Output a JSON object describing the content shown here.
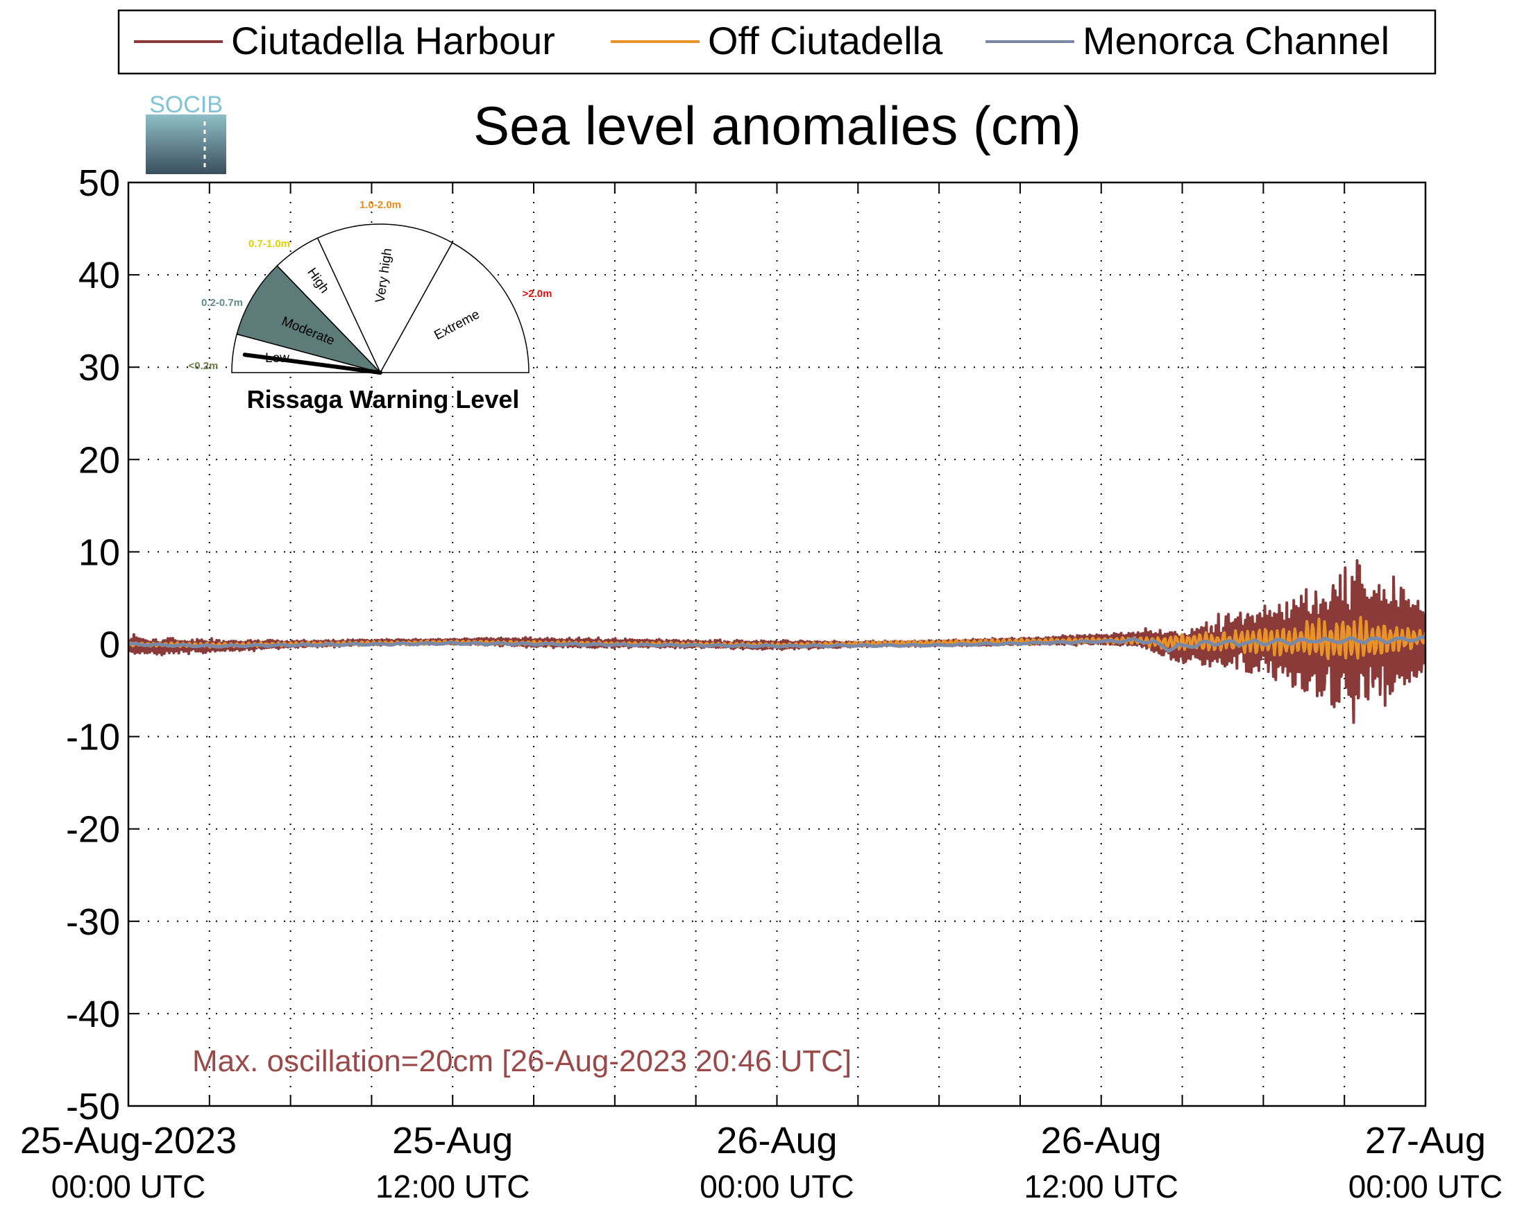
{
  "chart_data": {
    "type": "line",
    "title": "Sea level anomalies (cm)",
    "logo_text": "SOCIB",
    "xlabel": "",
    "ylabel": "",
    "ylim": [
      -50,
      50
    ],
    "yticks": [
      50,
      40,
      30,
      20,
      10,
      0,
      -10,
      -20,
      -30,
      -40,
      -50
    ],
    "ytick_labels": [
      "50",
      "40",
      "30",
      "20",
      "10",
      "0",
      "-10",
      "-20",
      "-30",
      "-40",
      "-50"
    ],
    "xlim_hours": [
      0,
      48
    ],
    "x_time_axis": "2023-08-25 00:00 UTC to 2023-08-27 00:00 UTC",
    "xtick_labels": [
      {
        "hour": 0,
        "date": "25-Aug-2023",
        "time": "00:00 UTC"
      },
      {
        "hour": 12,
        "date": "25-Aug",
        "time": "12:00 UTC"
      },
      {
        "hour": 24,
        "date": "26-Aug",
        "time": "00:00 UTC"
      },
      {
        "hour": 36,
        "date": "26-Aug",
        "time": "12:00 UTC"
      },
      {
        "hour": 48,
        "date": "27-Aug",
        "time": "00:00 UTC"
      }
    ],
    "grid": true,
    "grid_minor_x_hours": 3,
    "legend_position": "top",
    "series": [
      {
        "name": "Ciutadella Harbour",
        "color": "#8b3a3a",
        "envelope": {
          "hours": [
            0,
            1,
            2,
            3,
            6,
            9,
            12,
            15,
            18,
            21,
            24,
            27,
            30,
            33,
            36,
            37.5,
            38,
            39,
            40,
            41,
            42,
            43,
            44,
            45,
            45.5,
            46,
            46.5,
            47,
            47.6,
            48
          ],
          "mean_cm": [
            0,
            -0.3,
            -0.2,
            -0.2,
            0,
            0.2,
            0.3,
            0.2,
            0.1,
            0,
            -0.1,
            0,
            0.1,
            0.3,
            0.5,
            0.6,
            0.3,
            -0.3,
            0,
            0.5,
            0.4,
            0.3,
            0.3,
            0.4,
            0.5,
            0.4,
            0.3,
            0.5,
            0.6,
            0.6
          ],
          "amplitude_cm": [
            0.9,
            1.0,
            0.8,
            0.7,
            0.4,
            0.3,
            0.3,
            0.5,
            0.5,
            0.4,
            0.5,
            0.3,
            0.3,
            0.4,
            0.6,
            0.9,
            1.3,
            1.8,
            2.6,
            3.2,
            3.5,
            4.2,
            6.5,
            7.8,
            8.8,
            7.0,
            6.8,
            6.0,
            5.5,
            3.5
          ]
        },
        "max_cm": 9.5,
        "min_cm": -10.5
      },
      {
        "name": "Off Ciutadella",
        "color": "#e8922a",
        "envelope": {
          "hours": [
            0,
            3,
            12,
            24,
            36,
            37.5,
            38,
            40,
            42,
            43,
            44,
            46,
            48
          ],
          "mean_cm": [
            0,
            -0.1,
            0.2,
            -0.1,
            0.4,
            0.4,
            0.2,
            0.3,
            0.3,
            0.3,
            0.4,
            0.5,
            0.6
          ],
          "amplitude_cm": [
            0.2,
            0.2,
            0.2,
            0.2,
            0.3,
            0.4,
            0.6,
            1.0,
            1.3,
            1.5,
            2.2,
            2.0,
            0.8
          ]
        }
      },
      {
        "name": "Menorca Channel",
        "color": "#7a8aa6",
        "envelope": {
          "hours": [
            0,
            3,
            12,
            24,
            30,
            36,
            37.5,
            38,
            38.5,
            40,
            42,
            44,
            46,
            48
          ],
          "mean_cm": [
            0,
            -0.2,
            0.1,
            -0.2,
            -0.1,
            0.3,
            0.4,
            0.1,
            -0.4,
            0.1,
            0.2,
            0.4,
            0.4,
            0.6
          ],
          "amplitude_cm": [
            0.1,
            0.1,
            0.1,
            0.1,
            0.1,
            0.1,
            0.2,
            0.3,
            0.3,
            0.3,
            0.3,
            0.3,
            0.3,
            0.2
          ]
        }
      }
    ],
    "annotation": "Max. oscillation=20cm [26-Aug-2023 20:46 UTC]",
    "annotation_color": "#9b4848",
    "inset_gauge": {
      "title": "Rissaga Warning Level",
      "current_level": "Low",
      "sectors": [
        {
          "name": "Low",
          "range": "<0.2m",
          "range_color": "#6b7f4a",
          "fill": "#ffffff"
        },
        {
          "name": "Moderate",
          "range": "0.2-0.7m",
          "range_color": "#5f8b8a",
          "fill": "#5d7b78"
        },
        {
          "name": "High",
          "range": "0.7-1.0m",
          "range_color": "#e3d000",
          "fill": "#ffffff"
        },
        {
          "name": "Very high",
          "range": "1.0-2.0m",
          "range_color": "#f08a1c",
          "fill": "#ffffff"
        },
        {
          "name": "Extreme",
          "range": ">2.0m",
          "range_color": "#e01010",
          "fill": "#ffffff"
        }
      ]
    }
  }
}
